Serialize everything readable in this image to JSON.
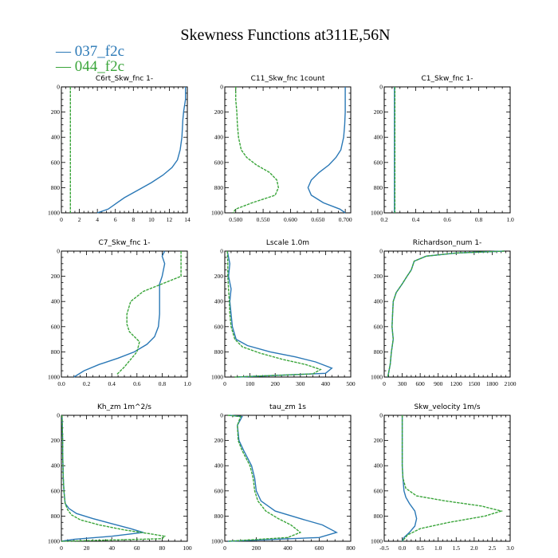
{
  "figure": {
    "title": "Skewness Functions at311E,56N",
    "legend": [
      {
        "label": "— 037_f2c",
        "color": "#2a78b6"
      },
      {
        "label": "— 044_f2c",
        "color": "#3aa53a"
      }
    ]
  },
  "chart_data": [
    {
      "type": "line",
      "title": "C6rt_Skw_fnc   1-",
      "xlim": [
        0,
        14
      ],
      "ylim": [
        0,
        1000
      ],
      "xticks": [
        0,
        2,
        4,
        6,
        8,
        10,
        12,
        14
      ],
      "xticklabels": [
        "0",
        "2",
        "4",
        "6",
        "8",
        "10",
        "12",
        "14"
      ],
      "yticks": [
        0,
        200,
        400,
        600,
        800,
        1000
      ],
      "yticklabels": [
        "0",
        "200",
        "400",
        "600",
        "800",
        "1000"
      ],
      "series": [
        {
          "name": "037_f2c",
          "color": "#2a78b6",
          "x": [
            13.8,
            13.8,
            13.6,
            13.5,
            13.4,
            13.2,
            12.9,
            12.3,
            11.3,
            10.0,
            8.5,
            7.0,
            6.0,
            5.2,
            4.0
          ],
          "y": [
            0,
            100,
            190,
            260,
            400,
            500,
            580,
            640,
            700,
            760,
            820,
            880,
            930,
            970,
            1000
          ]
        },
        {
          "name": "044_f2c",
          "color": "#3aa53a",
          "x": [
            1.0,
            1.0
          ],
          "y": [
            0,
            1000
          ]
        }
      ]
    },
    {
      "type": "line",
      "title": "C11_Skw_fnc   1count",
      "xlim": [
        0.48,
        0.71
      ],
      "ylim": [
        0,
        1000
      ],
      "xticks": [
        0.5,
        0.55,
        0.6,
        0.65,
        0.7
      ],
      "xticklabels": [
        "0.500",
        "0.550",
        "0.600",
        "0.650",
        "0.700"
      ],
      "yticks": [
        0,
        200,
        400,
        600,
        800,
        1000
      ],
      "yticklabels": [
        "0",
        "200",
        "400",
        "600",
        "800",
        "1000"
      ],
      "series": [
        {
          "name": "037_f2c",
          "color": "#2a78b6",
          "x": [
            0.7,
            0.7,
            0.7,
            0.699,
            0.697,
            0.692,
            0.683,
            0.67,
            0.652,
            0.638,
            0.632,
            0.638,
            0.66,
            0.69,
            0.7
          ],
          "y": [
            0,
            100,
            200,
            300,
            400,
            500,
            560,
            620,
            680,
            740,
            800,
            860,
            920,
            970,
            1000
          ]
        },
        {
          "name": "044_f2c",
          "color": "#3aa53a",
          "x": [
            0.5,
            0.5,
            0.502,
            0.503,
            0.505,
            0.51,
            0.52,
            0.538,
            0.562,
            0.575,
            0.578,
            0.572,
            0.53,
            0.5,
            0.495
          ],
          "y": [
            0,
            100,
            200,
            300,
            400,
            500,
            560,
            620,
            680,
            740,
            800,
            860,
            920,
            970,
            1000
          ]
        }
      ]
    },
    {
      "type": "line",
      "title": "C1_Skw_fnc   1-",
      "xlim": [
        0.2,
        1.0
      ],
      "ylim": [
        0,
        1000
      ],
      "xticks": [
        0.2,
        0.4,
        0.6,
        0.8,
        1.0
      ],
      "xticklabels": [
        "0.2",
        "0.4",
        "0.6",
        "0.8",
        "1.0"
      ],
      "yticks": [
        0,
        200,
        400,
        600,
        800,
        1000
      ],
      "yticklabels": [
        "0",
        "200",
        "400",
        "600",
        "800",
        "1000"
      ],
      "series": [
        {
          "name": "037_f2c",
          "color": "#2a78b6",
          "x": [
            0.265,
            0.265
          ],
          "y": [
            0,
            1000
          ]
        },
        {
          "name": "044_f2c",
          "color": "#3aa53a",
          "x": [
            0.268,
            0.268
          ],
          "y": [
            0,
            1000
          ]
        }
      ]
    },
    {
      "type": "line",
      "title": "C7_Skw_fnc   1-",
      "xlim": [
        0.0,
        1.0
      ],
      "ylim": [
        0,
        1000
      ],
      "xticks": [
        0.0,
        0.2,
        0.4,
        0.6,
        0.8,
        1.0
      ],
      "xticklabels": [
        "0.0",
        "0.2",
        "0.4",
        "0.6",
        "0.8",
        "1.0"
      ],
      "yticks": [
        0,
        200,
        400,
        600,
        800,
        1000
      ],
      "yticklabels": [
        "0",
        "200",
        "400",
        "600",
        "800",
        "1000"
      ],
      "series": [
        {
          "name": "037_f2c",
          "color": "#2a78b6",
          "x": [
            0.82,
            0.8,
            0.82,
            0.8,
            0.78,
            0.78,
            0.78,
            0.77,
            0.74,
            0.68,
            0.58,
            0.45,
            0.3,
            0.18,
            0.1
          ],
          "y": [
            0,
            40,
            100,
            200,
            260,
            400,
            500,
            600,
            680,
            740,
            800,
            850,
            900,
            950,
            1000
          ]
        },
        {
          "name": "044_f2c",
          "color": "#3aa53a",
          "x": [
            0.95,
            0.95,
            0.95,
            0.8,
            0.65,
            0.55,
            0.52,
            0.52,
            0.54,
            0.58,
            0.62,
            0.6,
            0.55,
            0.5,
            0.44
          ],
          "y": [
            0,
            100,
            200,
            260,
            320,
            400,
            500,
            580,
            640,
            680,
            720,
            800,
            860,
            920,
            980
          ]
        }
      ]
    },
    {
      "type": "line",
      "title": "Lscale   1.0m",
      "xlim": [
        0,
        500
      ],
      "ylim": [
        0,
        1000
      ],
      "xticks": [
        0,
        100,
        200,
        300,
        400,
        500
      ],
      "xticklabels": [
        "0",
        "100",
        "200",
        "300",
        "400",
        "500"
      ],
      "yticks": [
        0,
        200,
        400,
        600,
        800,
        1000
      ],
      "yticklabels": [
        "0",
        "200",
        "400",
        "600",
        "800",
        "1000"
      ],
      "series": [
        {
          "name": "037_f2c",
          "color": "#2a78b6",
          "x": [
            10,
            20,
            15,
            25,
            20,
            25,
            30,
            45,
            90,
            180,
            280,
            360,
            425,
            400,
            50
          ],
          "y": [
            0,
            100,
            200,
            300,
            400,
            500,
            600,
            700,
            750,
            800,
            840,
            880,
            930,
            970,
            1000
          ]
        },
        {
          "name": "044_f2c",
          "color": "#3aa53a",
          "x": [
            10,
            12,
            12,
            15,
            18,
            20,
            25,
            40,
            70,
            140,
            230,
            320,
            380,
            350,
            40
          ],
          "y": [
            0,
            100,
            200,
            300,
            400,
            500,
            600,
            700,
            760,
            810,
            860,
            900,
            940,
            975,
            1000
          ]
        }
      ]
    },
    {
      "type": "line",
      "title": "Richardson_num   1-",
      "xlim": [
        0,
        2100
      ],
      "ylim": [
        0,
        1000
      ],
      "xticks": [
        0,
        300,
        600,
        900,
        1200,
        1500,
        1800,
        2100
      ],
      "xticklabels": [
        "0",
        "300",
        "600",
        "900",
        "1200",
        "1500",
        "1800",
        "2100"
      ],
      "yticks": [
        0,
        200,
        400,
        600,
        800,
        1000
      ],
      "yticklabels": [
        "0",
        "200",
        "400",
        "600",
        "800",
        "1000"
      ],
      "series": [
        {
          "name": "037_f2c",
          "color": "#2a78b6",
          "x": [
            2000,
            1200,
            700,
            500,
            450,
            380,
            300,
            200,
            150,
            140,
            130,
            150,
            120,
            100,
            60
          ],
          "y": [
            0,
            15,
            40,
            80,
            150,
            200,
            260,
            330,
            400,
            500,
            600,
            700,
            800,
            900,
            1000
          ]
        },
        {
          "name": "044_f2c",
          "color": "#3aa53a",
          "x": [
            2000,
            1200,
            700,
            500,
            450,
            380,
            300,
            200,
            150,
            140,
            130,
            150,
            120,
            100,
            60
          ],
          "y": [
            0,
            15,
            40,
            80,
            150,
            200,
            260,
            330,
            400,
            500,
            600,
            700,
            800,
            900,
            1000
          ]
        }
      ]
    },
    {
      "type": "line",
      "title": "Kh_zm   1m^2/s",
      "xlim": [
        0,
        100
      ],
      "ylim": [
        0,
        1000
      ],
      "xticks": [
        0,
        20,
        40,
        60,
        80,
        100
      ],
      "xticklabels": [
        "0",
        "20",
        "40",
        "60",
        "80",
        "100"
      ],
      "yticks": [
        0,
        200,
        400,
        600,
        800,
        1000
      ],
      "yticklabels": [
        "0",
        "200",
        "400",
        "600",
        "800",
        "1000"
      ],
      "series": [
        {
          "name": "037_f2c",
          "color": "#2a78b6",
          "x": [
            0.5,
            1,
            1,
            1.5,
            2,
            3,
            6,
            12,
            25,
            40,
            55,
            65,
            40,
            10,
            0
          ],
          "y": [
            0,
            200,
            300,
            500,
            600,
            700,
            740,
            780,
            820,
            860,
            900,
            930,
            960,
            985,
            1000
          ]
        },
        {
          "name": "044_f2c",
          "color": "#3aa53a",
          "x": [
            0.5,
            1,
            1,
            1.5,
            2,
            3,
            5,
            8,
            15,
            30,
            50,
            70,
            82,
            80,
            0
          ],
          "y": [
            0,
            200,
            300,
            500,
            600,
            700,
            750,
            790,
            830,
            870,
            910,
            940,
            960,
            980,
            1000
          ]
        }
      ]
    },
    {
      "type": "line",
      "title": "tau_zm   1s",
      "xlim": [
        0,
        800
      ],
      "ylim": [
        0,
        1000
      ],
      "xticks": [
        0,
        200,
        400,
        600,
        800
      ],
      "xticklabels": [
        "0",
        "200",
        "400",
        "600",
        "800"
      ],
      "yticks": [
        0,
        200,
        400,
        600,
        800,
        1000
      ],
      "yticklabels": [
        "0",
        "200",
        "400",
        "600",
        "800",
        "1000"
      ],
      "series": [
        {
          "name": "037_f2c",
          "color": "#2a78b6",
          "x": [
            30,
            110,
            80,
            90,
            120,
            170,
            190,
            200,
            230,
            320,
            480,
            620,
            710,
            600,
            20
          ],
          "y": [
            0,
            10,
            80,
            200,
            280,
            400,
            500,
            600,
            680,
            760,
            820,
            870,
            930,
            970,
            1000
          ]
        },
        {
          "name": "044_f2c",
          "color": "#3aa53a",
          "x": [
            20,
            100,
            80,
            85,
            110,
            160,
            180,
            190,
            210,
            260,
            340,
            420,
            480,
            400,
            20
          ],
          "y": [
            0,
            10,
            80,
            200,
            280,
            400,
            500,
            600,
            680,
            760,
            820,
            870,
            930,
            970,
            1000
          ]
        }
      ]
    },
    {
      "type": "line",
      "title": "Skw_velocity   1m/s",
      "xlim": [
        -0.5,
        3.0
      ],
      "ylim": [
        0,
        1000
      ],
      "xticks": [
        -0.5,
        0.0,
        0.5,
        1.0,
        1.5,
        2.0,
        2.5,
        3.0
      ],
      "xticklabels": [
        "-0.5",
        "0.0",
        "0.5",
        "1.0",
        "1.5",
        "2.0",
        "2.5",
        "3.0"
      ],
      "yticks": [
        0,
        200,
        400,
        600,
        800,
        1000
      ],
      "yticklabels": [
        "0",
        "200",
        "400",
        "600",
        "800",
        "1000"
      ],
      "series": [
        {
          "name": "037_f2c",
          "color": "#2a78b6",
          "x": [
            0.0,
            0.0,
            0.0,
            0.02,
            0.05,
            0.1,
            0.2,
            0.35,
            0.4,
            0.35,
            0.2,
            0.05,
            0.0
          ],
          "y": [
            0,
            200,
            400,
            500,
            600,
            650,
            700,
            760,
            820,
            880,
            930,
            970,
            1000
          ]
        },
        {
          "name": "044_f2c",
          "color": "#3aa53a",
          "x": [
            0.0,
            0.0,
            0.0,
            0.02,
            0.1,
            0.4,
            1.2,
            2.2,
            2.75,
            2.3,
            1.3,
            0.5,
            0.15,
            0.0
          ],
          "y": [
            0,
            200,
            400,
            500,
            580,
            640,
            680,
            720,
            760,
            800,
            850,
            900,
            950,
            1000
          ]
        }
      ]
    }
  ]
}
